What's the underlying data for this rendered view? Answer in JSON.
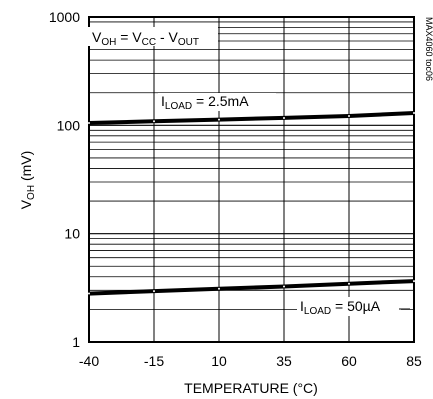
{
  "chart_data": {
    "type": "line",
    "xlabel": "TEMPERATURE (°C)",
    "ylabel": {
      "v": "V",
      "sub": "OH",
      "rest": " (mV)"
    },
    "side_id": "MAX4060 toc06",
    "x_ticks": [
      "-40",
      "-15",
      "10",
      "35",
      "60",
      "85"
    ],
    "y_ticks": [
      "1",
      "10",
      "100",
      "1000"
    ],
    "xlim": [
      -40,
      85
    ],
    "ylim": [
      1,
      1000
    ],
    "y_scale": "log",
    "grid": true,
    "formula": {
      "p1": "V",
      "s1": "OH",
      "p2": " = V",
      "s2": "CC",
      "p3": " - V",
      "s3": "OUT"
    },
    "series": [
      {
        "label": {
          "p": "I",
          "s": "LOAD",
          "r": " = 2.5mA"
        },
        "x": [
          -40,
          -15,
          10,
          35,
          60,
          85
        ],
        "y": [
          105,
          109,
          113,
          117,
          122,
          130
        ]
      },
      {
        "label": {
          "p": "I",
          "s": "LOAD",
          "r": " = 50µA"
        },
        "x": [
          -40,
          -15,
          10,
          35,
          60,
          85
        ],
        "y": [
          2.8,
          2.95,
          3.1,
          3.25,
          3.45,
          3.65
        ]
      }
    ]
  }
}
